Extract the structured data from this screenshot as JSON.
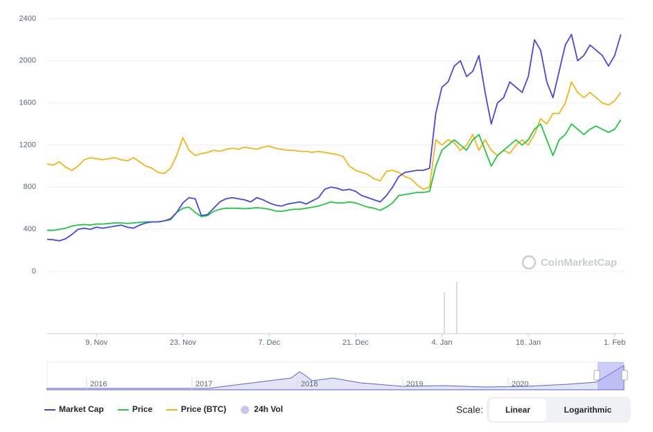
{
  "chart_data": {
    "type": "line",
    "categories": [
      null,
      null,
      null,
      null,
      null,
      null,
      null,
      null,
      "9. Nov",
      null,
      null,
      null,
      null,
      null,
      null,
      null,
      null,
      null,
      null,
      null,
      null,
      null,
      "23. Nov",
      null,
      null,
      null,
      null,
      null,
      null,
      null,
      null,
      null,
      null,
      null,
      null,
      null,
      "7. Dec",
      null,
      null,
      null,
      null,
      null,
      null,
      null,
      null,
      null,
      null,
      null,
      null,
      null,
      "21. Dec",
      null,
      null,
      null,
      null,
      null,
      null,
      null,
      null,
      null,
      null,
      null,
      null,
      null,
      "4. Jan",
      null,
      null,
      null,
      null,
      null,
      null,
      null,
      null,
      null,
      null,
      null,
      null,
      null,
      "18. Jan",
      null,
      null,
      null,
      null,
      null,
      null,
      null,
      null,
      null,
      null,
      null,
      null,
      null,
      "1. Feb",
      null
    ],
    "series": [
      {
        "name": "Market Cap",
        "color": "#4447e1",
        "values": [
          305,
          300,
          290,
          310,
          350,
          400,
          410,
          400,
          420,
          410,
          420,
          430,
          440,
          420,
          410,
          440,
          460,
          470,
          470,
          480,
          500,
          560,
          650,
          700,
          690,
          530,
          540,
          600,
          660,
          690,
          700,
          690,
          680,
          660,
          700,
          680,
          650,
          630,
          620,
          640,
          650,
          660,
          640,
          670,
          700,
          780,
          800,
          790,
          770,
          780,
          760,
          720,
          700,
          680,
          660,
          720,
          800,
          900,
          940,
          950,
          960,
          960,
          980,
          1500,
          1750,
          1800,
          1950,
          2000,
          1850,
          1900,
          2050,
          1700,
          1400,
          1600,
          1650,
          1800,
          1750,
          1700,
          1850,
          2200,
          2100,
          1800,
          1650,
          1900,
          2150,
          2250,
          2000,
          2050,
          2150,
          2100,
          2050,
          1950,
          2050,
          2250
        ]
      },
      {
        "name": "Price",
        "color": "#1dc940",
        "values": [
          390,
          390,
          400,
          410,
          430,
          440,
          445,
          440,
          450,
          450,
          455,
          460,
          460,
          455,
          460,
          465,
          470,
          470,
          470,
          480,
          490,
          560,
          600,
          610,
          560,
          520,
          530,
          570,
          590,
          600,
          600,
          600,
          595,
          600,
          605,
          600,
          590,
          575,
          570,
          580,
          590,
          590,
          600,
          610,
          620,
          640,
          660,
          650,
          650,
          660,
          650,
          630,
          610,
          600,
          580,
          610,
          650,
          720,
          730,
          740,
          750,
          750,
          760,
          1000,
          1150,
          1200,
          1250,
          1200,
          1150,
          1250,
          1300,
          1150,
          1000,
          1100,
          1150,
          1200,
          1250,
          1200,
          1250,
          1350,
          1400,
          1250,
          1100,
          1250,
          1300,
          1400,
          1350,
          1300,
          1350,
          1380,
          1350,
          1320,
          1350,
          1440
        ]
      },
      {
        "name": "Price (BTC)",
        "color": "#f3b418",
        "values": [
          1020,
          1010,
          1040,
          990,
          960,
          1000,
          1060,
          1080,
          1070,
          1060,
          1070,
          1080,
          1060,
          1050,
          1080,
          1040,
          1000,
          980,
          940,
          930,
          980,
          1100,
          1270,
          1150,
          1100,
          1120,
          1130,
          1150,
          1140,
          1160,
          1170,
          1160,
          1180,
          1170,
          1160,
          1180,
          1190,
          1170,
          1160,
          1150,
          1150,
          1140,
          1140,
          1130,
          1140,
          1130,
          1120,
          1110,
          1090,
          1000,
          960,
          940,
          920,
          880,
          860,
          950,
          960,
          940,
          900,
          880,
          820,
          780,
          800,
          1250,
          1200,
          1250,
          1220,
          1150,
          1200,
          1300,
          1150,
          1250,
          1150,
          1100,
          1150,
          1120,
          1200,
          1250,
          1200,
          1300,
          1450,
          1400,
          1500,
          1500,
          1600,
          1800,
          1700,
          1650,
          1700,
          1650,
          1600,
          1580,
          1620,
          1700
        ]
      }
    ],
    "ylim": [
      0,
      2400
    ],
    "yticks": [
      0,
      400,
      800,
      1200,
      1600,
      2000,
      2400
    ],
    "grid": true,
    "volume_legend": {
      "name": "24h Vol",
      "color": "#c5c8e8"
    }
  },
  "watermark": "CoinMarketCap",
  "navigator": {
    "years": [
      "2016",
      "2017",
      "2018",
      "2019",
      "2020"
    ]
  },
  "scale": {
    "label": "Scale:",
    "options": [
      "Linear",
      "Logarithmic"
    ]
  }
}
